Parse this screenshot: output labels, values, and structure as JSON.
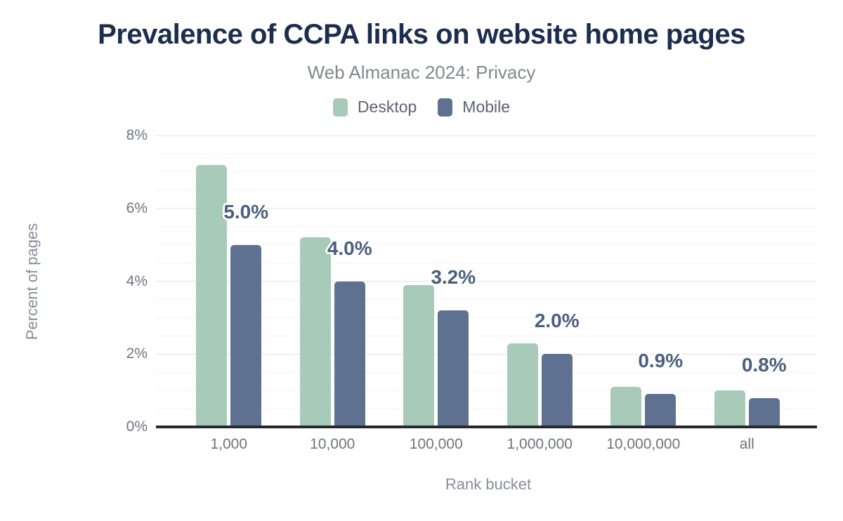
{
  "chart_data": {
    "type": "bar",
    "title": "Prevalence of CCPA links on website home pages",
    "subtitle": "Web Almanac 2024: Privacy",
    "xlabel": "Rank bucket",
    "ylabel": "Percent of pages",
    "categories": [
      "1,000",
      "10,000",
      "100,000",
      "1,000,000",
      "10,000,000",
      "all"
    ],
    "series": [
      {
        "name": "Desktop",
        "color": "#a8cab8",
        "values": [
          7.2,
          5.2,
          3.9,
          2.3,
          1.1,
          1.0
        ]
      },
      {
        "name": "Mobile",
        "color": "#5f7190",
        "values": [
          5.0,
          4.0,
          3.2,
          2.0,
          0.9,
          0.8
        ]
      }
    ],
    "data_labels": [
      "5.0%",
      "4.0%",
      "3.2%",
      "2.0%",
      "0.9%",
      "0.8%"
    ],
    "data_labels_series": "Mobile",
    "y_ticks": [
      "0%",
      "2%",
      "4%",
      "6%",
      "8%"
    ],
    "ylim": [
      0,
      8
    ],
    "y_major_step": 2,
    "y_minor_step": 0.5,
    "grid": true,
    "legend_position": "top"
  },
  "colors": {
    "background": "#ffffff",
    "title": "#1c2d4d",
    "subtitle": "#83878e",
    "legend_text": "#5d6470",
    "tick_text": "#6f747e",
    "axis_title_text": "#888d98",
    "data_label": "#4c5e7e",
    "label_outline": "#ffffff",
    "axis_line": "#26292d",
    "grid_major": "#e3e4e6",
    "grid_minor": "#f4f4f6"
  }
}
